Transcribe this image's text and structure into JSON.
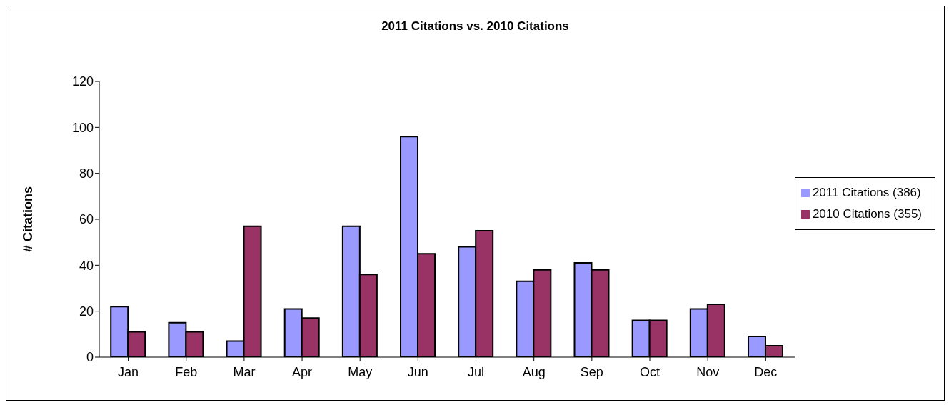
{
  "chart_data": {
    "type": "bar",
    "title": "2011 Citations vs. 2010 Citations",
    "ylabel": "# Citations",
    "categories": [
      "Jan",
      "Feb",
      "Mar",
      "Apr",
      "May",
      "Jun",
      "Jul",
      "Aug",
      "Sep",
      "Oct",
      "Nov",
      "Dec"
    ],
    "series": [
      {
        "name": "2011 Citations (386)",
        "color": "#9999ff",
        "values": [
          22,
          15,
          7,
          21,
          57,
          96,
          48,
          33,
          41,
          16,
          21,
          9
        ]
      },
      {
        "name": "2010 Citations (355)",
        "color": "#993366",
        "values": [
          11,
          11,
          57,
          17,
          36,
          45,
          55,
          38,
          38,
          16,
          23,
          5
        ]
      }
    ],
    "ylim": [
      0,
      120
    ],
    "yticks": [
      0,
      20,
      40,
      60,
      80,
      100,
      120
    ],
    "grid": false,
    "legend": "right"
  }
}
